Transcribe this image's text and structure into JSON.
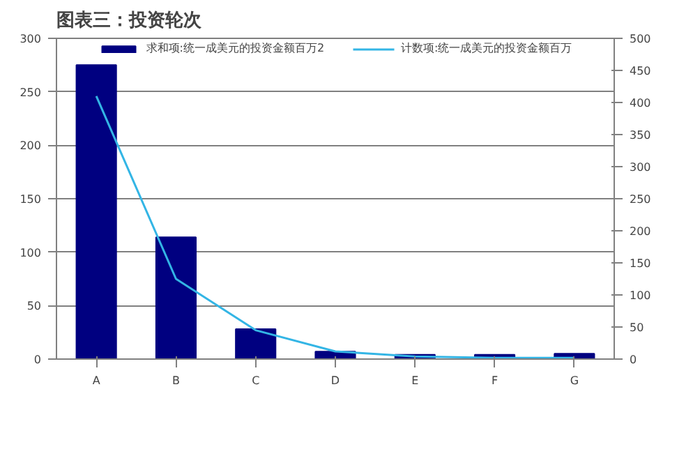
{
  "chart_data": {
    "type": "bar",
    "title": "图表三：投资轮次",
    "categories": [
      "A",
      "B",
      "C",
      "D",
      "E",
      "F",
      "G"
    ],
    "series": [
      {
        "name": "求和项:统一成美元的投资金额百万2",
        "color": "#000080",
        "values": [
          275,
          114,
          28,
          7,
          4,
          4,
          5
        ]
      },
      {
        "name": "计数项:统一成美元的投资金额百万",
        "type": "line",
        "axis": "y2",
        "color": "#33b5e5",
        "values": [
          410,
          125,
          45,
          12,
          4,
          2,
          2
        ]
      }
    ],
    "ylim": [
      0,
      300
    ],
    "yticks": [
      0,
      50,
      100,
      150,
      200,
      250,
      300
    ],
    "y2lim": [
      0,
      500
    ],
    "y2ticks": [
      0,
      50,
      100,
      150,
      200,
      250,
      300,
      350,
      400,
      450,
      500
    ],
    "grid": "y",
    "legend": "top",
    "line_style": "solid",
    "marker": "none"
  }
}
